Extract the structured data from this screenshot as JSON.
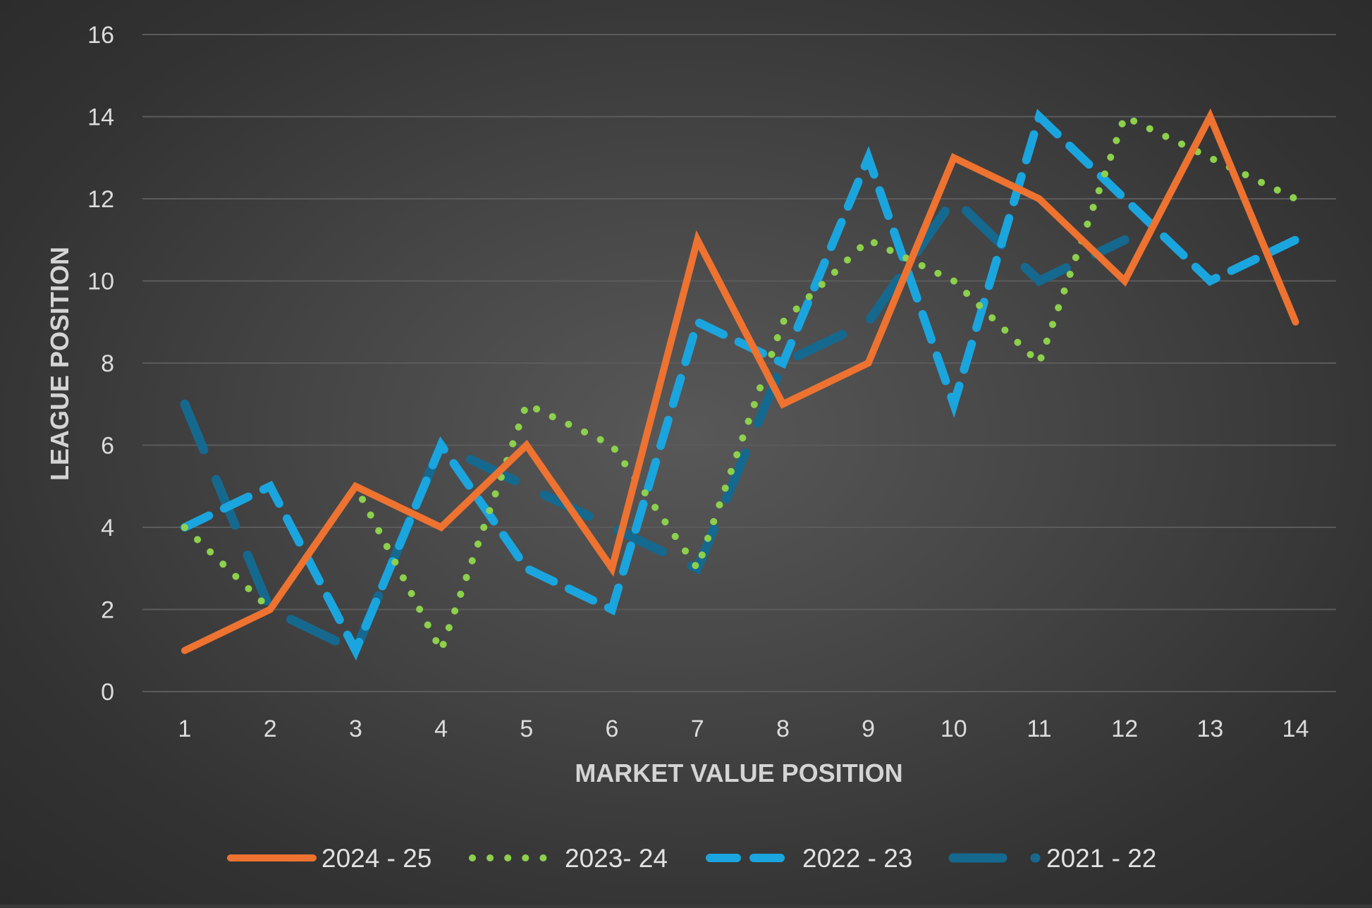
{
  "chart_data": {
    "type": "line",
    "title": "",
    "xlabel": "MARKET VALUE POSITION",
    "ylabel": "LEAGUE POSITION",
    "x": [
      1,
      2,
      3,
      4,
      5,
      6,
      7,
      8,
      9,
      10,
      11,
      12,
      13,
      14
    ],
    "x_tick_labels": [
      "1",
      "2",
      "3",
      "4",
      "5",
      "6",
      "7",
      "8",
      "9",
      "10",
      "11",
      "12",
      "13",
      "14"
    ],
    "ylim": [
      0,
      16
    ],
    "y_ticks": [
      0,
      2,
      4,
      6,
      8,
      10,
      12,
      14,
      16
    ],
    "y_tick_labels": [
      "0",
      "2",
      "4",
      "6",
      "8",
      "10",
      "12",
      "14",
      "16"
    ],
    "grid": true,
    "legend_position": "bottom",
    "series": [
      {
        "name": "2024 - 25",
        "style": "solid",
        "color": "#ee7230",
        "values": [
          1,
          2,
          5,
          4,
          6,
          3,
          11,
          7,
          8,
          13,
          12,
          10,
          14,
          9
        ]
      },
      {
        "name": "2023- 24",
        "style": "dotted",
        "color": "#8cd04c",
        "values": [
          4,
          2,
          5,
          1,
          7,
          6,
          3,
          9,
          11,
          10,
          8,
          14,
          13,
          12
        ]
      },
      {
        "name": "2022 - 23",
        "style": "dashed",
        "color": "#1aa5de",
        "values": [
          4,
          5,
          1,
          6,
          3,
          2,
          9,
          8,
          13,
          7,
          14,
          12,
          10,
          11
        ]
      },
      {
        "name": "2021 - 22",
        "style": "long-dash",
        "color": "#15698f",
        "values": [
          7,
          2,
          1,
          6,
          5,
          4,
          3,
          8,
          9,
          12,
          10,
          11,
          null,
          null
        ]
      }
    ]
  }
}
